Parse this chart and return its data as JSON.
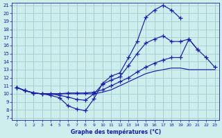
{
  "title": "Graphe des températures (°C)",
  "background_color": "#cdeeed",
  "grid_color": "#a0cccc",
  "line_color": "#1a1aaa",
  "x_hours": [
    0,
    1,
    2,
    3,
    4,
    5,
    6,
    7,
    8,
    9,
    10,
    11,
    12,
    13,
    14,
    15,
    16,
    17,
    18,
    19,
    20,
    21,
    22,
    23
  ],
  "line1": [
    10.8,
    10.4,
    10.1,
    10.0,
    9.8,
    9.5,
    8.5,
    8.1,
    7.9,
    9.4,
    11.3,
    12.2,
    12.6,
    14.5,
    16.5,
    19.5,
    20.4,
    21.0,
    20.4,
    19.4,
    null,
    null,
    null,
    null
  ],
  "line2": [
    10.8,
    10.4,
    10.1,
    10.0,
    10.0,
    9.8,
    9.6,
    9.3,
    9.2,
    10.0,
    11.2,
    11.7,
    12.1,
    13.5,
    15.0,
    16.3,
    16.8,
    17.2,
    16.5,
    16.5,
    16.8,
    15.5,
    null,
    null
  ],
  "line3": [
    10.8,
    10.4,
    10.1,
    10.0,
    10.0,
    10.0,
    10.1,
    10.1,
    10.1,
    10.2,
    10.5,
    11.0,
    11.5,
    12.0,
    12.7,
    13.3,
    13.8,
    14.2,
    14.5,
    14.5,
    16.8,
    15.5,
    14.5,
    13.3
  ],
  "line4": [
    10.8,
    10.4,
    10.1,
    10.0,
    10.0,
    10.0,
    10.0,
    10.0,
    10.0,
    10.0,
    10.2,
    10.5,
    11.0,
    11.5,
    12.0,
    12.5,
    12.8,
    13.0,
    13.2,
    13.2,
    13.0,
    13.0,
    13.0,
    13.0
  ],
  "ylim_min": 7,
  "ylim_max": 21,
  "yticks": [
    7,
    8,
    9,
    10,
    11,
    12,
    13,
    14,
    15,
    16,
    17,
    18,
    19,
    20,
    21
  ],
  "xticks": [
    0,
    1,
    2,
    3,
    4,
    5,
    6,
    7,
    8,
    9,
    10,
    11,
    12,
    13,
    14,
    15,
    16,
    17,
    18,
    19,
    20,
    21,
    22,
    23
  ]
}
